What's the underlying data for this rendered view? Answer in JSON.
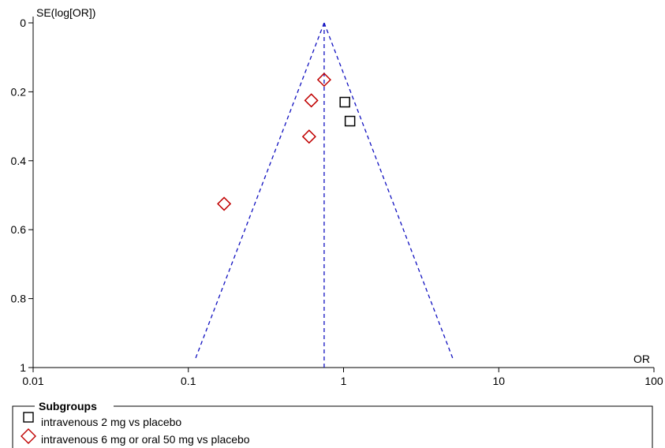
{
  "chart_data": {
    "type": "scatter",
    "subtype": "funnel plot",
    "x_scale": "log",
    "y_reversed": true,
    "xlabel": "OR",
    "ylabel": "SE(log[OR])",
    "xlim": [
      0.01,
      100
    ],
    "ylim": [
      0,
      1
    ],
    "x_ticks": [
      0.01,
      0.1,
      1,
      10,
      100
    ],
    "x_tick_labels": [
      "0.01",
      "0.1",
      "1",
      "10",
      "100"
    ],
    "y_ticks": [
      0,
      0.2,
      0.4,
      0.6,
      0.8,
      1
    ],
    "y_tick_labels": [
      "0",
      "0.2",
      "0.4",
      "0.6",
      "0.8",
      "1"
    ],
    "pooled_or": 0.75,
    "funnel_apex_se": 0,
    "funnel_base_se": 0.98,
    "colors": {
      "funnel": "#1010c0",
      "diamond": "#c00000",
      "square": "#000000"
    },
    "legend": {
      "title": "Subgroups",
      "position": "bottom",
      "entries": [
        {
          "label": "intravenous 2 mg vs placebo",
          "marker": "square"
        },
        {
          "label": "intravenous 6 mg or oral 50 mg vs placebo",
          "marker": "diamond"
        }
      ]
    },
    "series": [
      {
        "name": "intravenous 2 mg vs placebo",
        "marker": "square",
        "points": [
          {
            "x": 1.02,
            "y": 0.23
          },
          {
            "x": 1.1,
            "y": 0.285
          }
        ]
      },
      {
        "name": "intravenous 6 mg or oral 50 mg vs placebo",
        "marker": "diamond",
        "points": [
          {
            "x": 0.75,
            "y": 0.165
          },
          {
            "x": 0.62,
            "y": 0.225
          },
          {
            "x": 0.6,
            "y": 0.33
          },
          {
            "x": 0.17,
            "y": 0.525
          }
        ]
      }
    ]
  }
}
